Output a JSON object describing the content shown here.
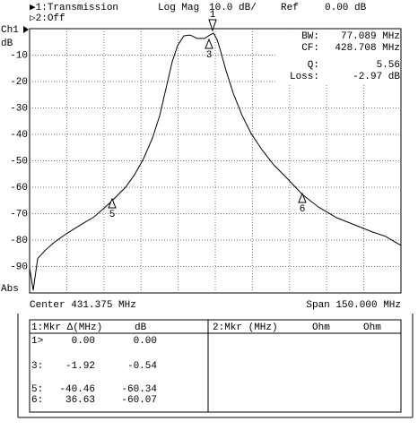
{
  "header": {
    "trace1": "▶1:Transmission",
    "format": "Log Mag",
    "scale": "10.0 dB/",
    "ref_label": "Ref",
    "ref_value": "0.00 dB",
    "trace2": "▷2:Off",
    "channel": "Ch1"
  },
  "chart_data": {
    "type": "line",
    "ylabel": "dB",
    "ybottom_label": "Abs",
    "color": "#000000",
    "x": [
      356.375,
      357.82,
      359.64,
      362.53,
      366.16,
      371.23,
      377.03,
      382.46,
      388.62,
      395.14,
      398.76,
      402.39,
      406.01,
      408.91,
      411.45,
      413.98,
      416.15,
      418.69,
      421.22,
      424.12,
      427.02,
      429.19,
      430.65,
      432.1,
      433.55,
      435.72,
      438.62,
      442.24,
      445.86,
      450.21,
      454.92,
      460.36,
      466.5,
      473.03,
      480.28,
      487.52,
      494.77,
      500.21,
      506.375
    ],
    "values": [
      -90.5,
      -99,
      -87,
      -84,
      -81,
      -77.6,
      -74.2,
      -71.2,
      -66.1,
      -60,
      -55.3,
      -49.2,
      -41.4,
      -32.9,
      -22.7,
      -12.5,
      -6.4,
      -2.7,
      -2.4,
      -3.7,
      -3.7,
      -2.4,
      -1.7,
      -4.1,
      -8.5,
      -15.9,
      -24.4,
      -32.9,
      -39.7,
      -45.8,
      -51.5,
      -56.6,
      -62.7,
      -67.5,
      -71.5,
      -74.2,
      -76.9,
      -78.6,
      -82
    ],
    "xlim": [
      356.375,
      506.375
    ],
    "ylim": [
      -100,
      0
    ],
    "yticks": [
      -10,
      -20,
      -30,
      -40,
      -50,
      -60,
      -70,
      -80,
      -90
    ],
    "grid": true,
    "center_label": "Center 431.375 MHz",
    "span_label": "Span 150.000 MHz"
  },
  "trace_markers": [
    "1",
    "3",
    "5",
    "6"
  ],
  "info": [
    [
      "BW:",
      "77.089 MHz"
    ],
    [
      "CF:",
      "428.708 MHz"
    ],
    [
      "Q:",
      "5.56"
    ],
    [
      "Loss:",
      "-2.97 dB"
    ]
  ],
  "table": {
    "left_header": [
      "1:Mkr Δ(MHz)",
      "dB"
    ],
    "right_header": [
      "2:Mkr (MHz)",
      "Ohm",
      "Ohm"
    ],
    "rows": [
      [
        "1>",
        "0.00",
        "0.00"
      ],
      [
        "3:",
        "-1.92",
        "-0.54"
      ],
      [
        "5:",
        "-40.46",
        "-60.34"
      ],
      [
        "6:",
        "36.63",
        "-60.07"
      ]
    ]
  }
}
